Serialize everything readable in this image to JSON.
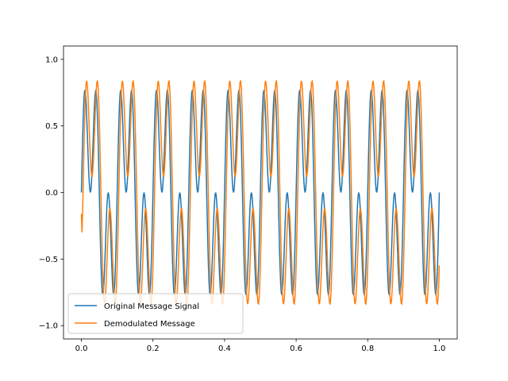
{
  "chart_data": {
    "type": "line",
    "title": "",
    "xlabel": "",
    "ylabel": "",
    "xlim": [
      -0.05,
      1.05
    ],
    "ylim": [
      -1.1,
      1.1
    ],
    "x_ticks": [
      0.0,
      0.2,
      0.4,
      0.6,
      0.8,
      1.0
    ],
    "x_tick_labels": [
      "0.0",
      "0.2",
      "0.4",
      "0.6",
      "0.8",
      "1.0"
    ],
    "y_ticks": [
      -1.0,
      -0.5,
      0.0,
      0.5,
      1.0
    ],
    "y_tick_labels": [
      "−1.0",
      "−0.5",
      "0.0",
      "0.5",
      "1.0"
    ],
    "grid": false,
    "legend_position": "lower-left",
    "x_range": [
      0.0,
      1.0
    ],
    "series": [
      {
        "name": "Original Message Signal",
        "color": "#1f77b4",
        "function": "0.5*sin(2*pi*10*t) + 0.5*sin(2*pi*30*t)"
      },
      {
        "name": "Demodulated Message",
        "color": "#ff7f0e",
        "function": "filtered reconstruction of 0.5*sin(2*pi*10*t) + 0.5*sin(2*pi*30*t), peaks near ±1.02"
      }
    ]
  }
}
